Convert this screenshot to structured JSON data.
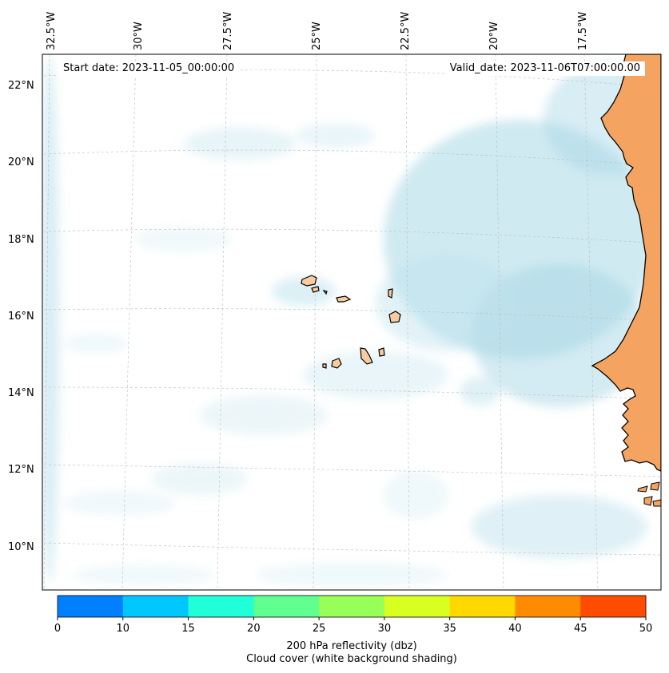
{
  "header": {
    "start_date": "Start date: 2023-11-05_00:00:00",
    "valid_date": "Valid_date: 2023-11-06T07:00:00.00"
  },
  "map": {
    "longitude_labels": [
      "32.5°W",
      "30°W",
      "27.5°W",
      "25°W",
      "22.5°W",
      "20°W",
      "17.5°W"
    ],
    "latitude_labels": [
      "22°N",
      "20°N",
      "18°N",
      "16°N",
      "14°N",
      "12°N",
      "10°N"
    ],
    "colors": {
      "land": "#f4a460",
      "island_land": "#f9cba0",
      "cloud": "#a8d8e6",
      "coastline": "#000000",
      "gridline": "#bbbbbb"
    }
  },
  "colorbar": {
    "ticks": [
      "0",
      "10",
      "15",
      "20",
      "25",
      "30",
      "35",
      "40",
      "45",
      "50"
    ],
    "colors": [
      "#0080ff",
      "#00c8ff",
      "#20ffd8",
      "#60ff90",
      "#98ff58",
      "#d8ff20",
      "#ffd800",
      "#ff8c00",
      "#ff4c00"
    ],
    "label_line1": "200 hPa reflectivity (dbz)",
    "label_line2": "Cloud cover (white background shading)"
  }
}
